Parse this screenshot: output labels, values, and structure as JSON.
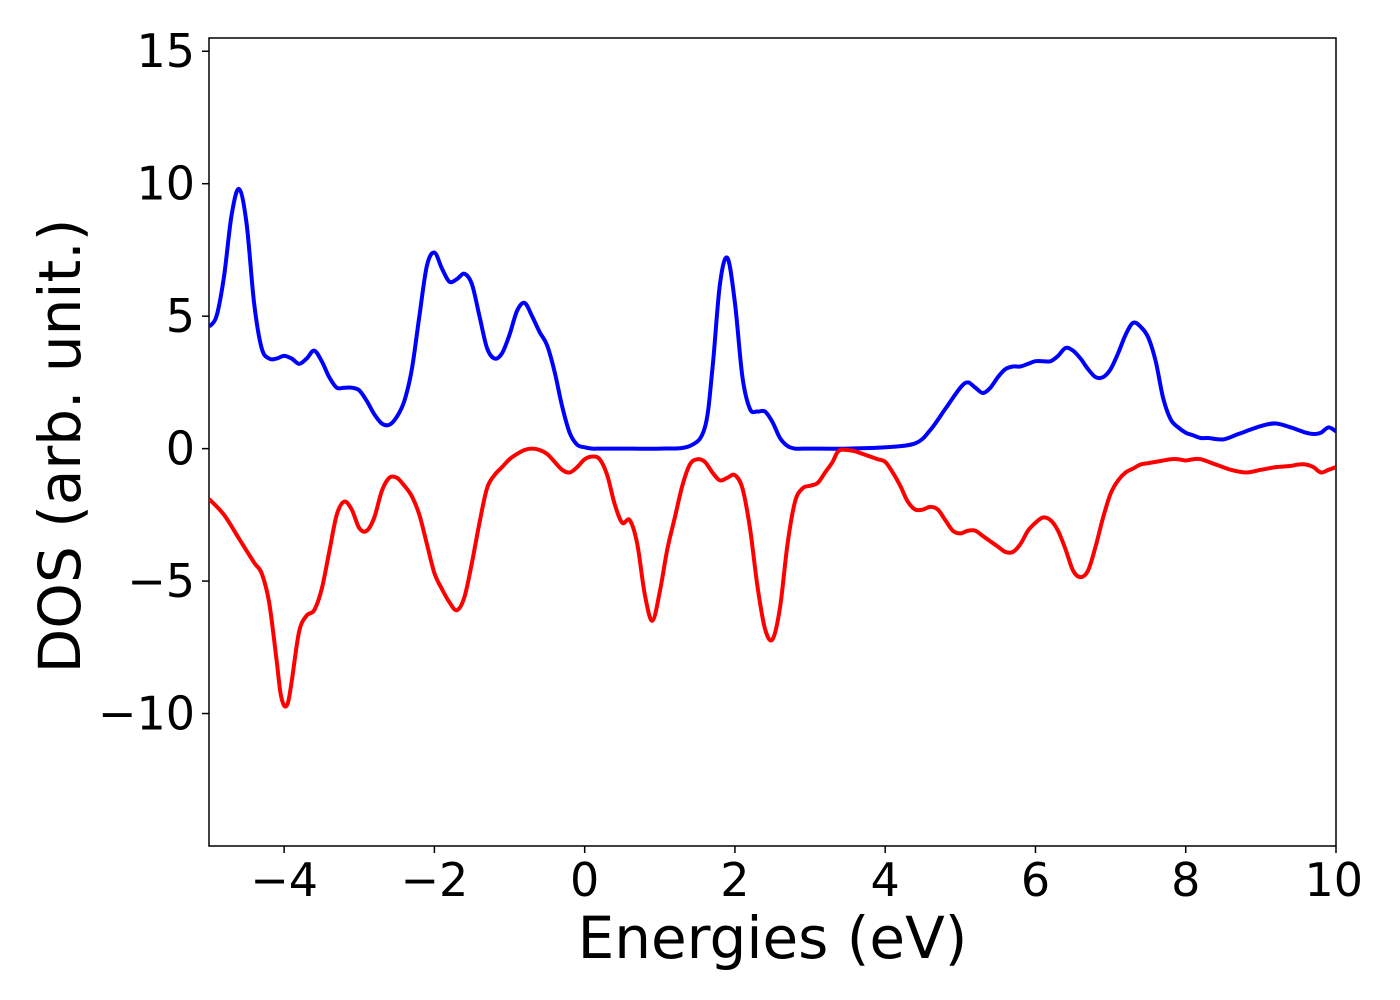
{
  "chart_data": {
    "type": "line",
    "xlabel": "Energies (eV)",
    "ylabel": "DOS (arb. unit.)",
    "xlim": [
      -5,
      10
    ],
    "ylim": [
      -15,
      15.5
    ],
    "xticks": [
      -4,
      -2,
      0,
      2,
      4,
      6,
      8,
      10
    ],
    "yticks": [
      -10,
      -5,
      0,
      5,
      10,
      15
    ],
    "grid": false,
    "legend": "none",
    "series": [
      {
        "color": "#0000ff",
        "x": [
          -5.0,
          -4.9,
          -4.8,
          -4.7,
          -4.6,
          -4.5,
          -4.4,
          -4.3,
          -4.2,
          -4.1,
          -4.0,
          -3.9,
          -3.8,
          -3.7,
          -3.6,
          -3.5,
          -3.4,
          -3.3,
          -3.2,
          -3.1,
          -3.0,
          -2.9,
          -2.8,
          -2.7,
          -2.6,
          -2.5,
          -2.4,
          -2.3,
          -2.2,
          -2.1,
          -2.0,
          -1.9,
          -1.8,
          -1.7,
          -1.6,
          -1.5,
          -1.4,
          -1.3,
          -1.2,
          -1.1,
          -1.0,
          -0.9,
          -0.8,
          -0.7,
          -0.6,
          -0.5,
          -0.4,
          -0.3,
          -0.2,
          -0.1,
          0.0,
          0.1,
          0.2,
          0.3,
          0.6,
          1.0,
          1.4,
          1.6,
          1.7,
          1.8,
          1.9,
          2.0,
          2.1,
          2.2,
          2.3,
          2.4,
          2.5,
          2.6,
          2.7,
          2.8,
          2.9,
          3.0,
          3.5,
          4.0,
          4.4,
          4.6,
          4.8,
          5.0,
          5.1,
          5.2,
          5.3,
          5.4,
          5.5,
          5.6,
          5.7,
          5.8,
          5.9,
          6.0,
          6.1,
          6.2,
          6.3,
          6.4,
          6.5,
          6.6,
          6.7,
          6.8,
          6.9,
          7.0,
          7.1,
          7.2,
          7.3,
          7.4,
          7.5,
          7.6,
          7.7,
          7.8,
          7.9,
          8.0,
          8.1,
          8.2,
          8.3,
          8.5,
          8.7,
          9.0,
          9.2,
          9.4,
          9.5,
          9.6,
          9.7,
          9.8,
          9.9,
          10.0
        ],
        "y": [
          4.6,
          5.0,
          6.5,
          8.8,
          9.8,
          8.5,
          5.5,
          3.8,
          3.4,
          3.4,
          3.5,
          3.4,
          3.2,
          3.4,
          3.7,
          3.3,
          2.7,
          2.3,
          2.3,
          2.3,
          2.2,
          1.8,
          1.3,
          0.95,
          0.9,
          1.2,
          1.8,
          3.0,
          5.0,
          6.9,
          7.4,
          6.8,
          6.3,
          6.4,
          6.6,
          6.2,
          5.0,
          3.8,
          3.4,
          3.6,
          4.3,
          5.2,
          5.5,
          5.0,
          4.4,
          3.9,
          2.9,
          1.6,
          0.6,
          0.15,
          0.05,
          0.0,
          0.0,
          0.0,
          0.0,
          0.0,
          0.1,
          0.8,
          3.0,
          6.2,
          7.2,
          5.5,
          2.7,
          1.5,
          1.4,
          1.4,
          1.0,
          0.4,
          0.1,
          0.0,
          0.0,
          0.0,
          0.0,
          0.05,
          0.2,
          0.7,
          1.5,
          2.3,
          2.5,
          2.3,
          2.1,
          2.3,
          2.7,
          3.0,
          3.1,
          3.1,
          3.2,
          3.3,
          3.3,
          3.3,
          3.5,
          3.8,
          3.7,
          3.4,
          3.0,
          2.7,
          2.7,
          3.0,
          3.6,
          4.3,
          4.75,
          4.6,
          4.2,
          3.3,
          1.9,
          1.1,
          0.8,
          0.6,
          0.5,
          0.4,
          0.4,
          0.35,
          0.55,
          0.85,
          0.95,
          0.8,
          0.7,
          0.6,
          0.55,
          0.6,
          0.8,
          0.65
        ]
      },
      {
        "color": "#ff0000",
        "x": [
          -5.0,
          -4.8,
          -4.6,
          -4.4,
          -4.3,
          -4.2,
          -4.1,
          -4.05,
          -4.0,
          -3.95,
          -3.9,
          -3.8,
          -3.7,
          -3.6,
          -3.5,
          -3.4,
          -3.3,
          -3.2,
          -3.1,
          -3.0,
          -2.9,
          -2.8,
          -2.7,
          -2.6,
          -2.5,
          -2.4,
          -2.3,
          -2.2,
          -2.1,
          -2.0,
          -1.9,
          -1.8,
          -1.7,
          -1.6,
          -1.5,
          -1.4,
          -1.3,
          -1.2,
          -1.1,
          -1.0,
          -0.9,
          -0.8,
          -0.7,
          -0.6,
          -0.5,
          -0.4,
          -0.3,
          -0.2,
          -0.1,
          0.0,
          0.1,
          0.2,
          0.3,
          0.4,
          0.5,
          0.6,
          0.7,
          0.8,
          0.9,
          1.0,
          1.1,
          1.2,
          1.3,
          1.4,
          1.5,
          1.6,
          1.7,
          1.8,
          1.9,
          2.0,
          2.1,
          2.2,
          2.3,
          2.4,
          2.5,
          2.6,
          2.7,
          2.8,
          2.9,
          3.0,
          3.1,
          3.2,
          3.3,
          3.35,
          3.4,
          3.5,
          3.6,
          3.7,
          3.8,
          3.9,
          4.0,
          4.1,
          4.2,
          4.3,
          4.4,
          4.5,
          4.6,
          4.7,
          4.8,
          4.9,
          5.0,
          5.1,
          5.2,
          5.3,
          5.4,
          5.5,
          5.6,
          5.7,
          5.8,
          5.9,
          6.0,
          6.1,
          6.2,
          6.3,
          6.4,
          6.5,
          6.6,
          6.7,
          6.8,
          6.9,
          7.0,
          7.1,
          7.2,
          7.3,
          7.4,
          7.5,
          7.6,
          7.7,
          7.8,
          7.9,
          8.0,
          8.1,
          8.2,
          8.4,
          8.6,
          8.8,
          9.0,
          9.2,
          9.4,
          9.5,
          9.6,
          9.7,
          9.8,
          9.9,
          10.0
        ],
        "y": [
          -1.9,
          -2.5,
          -3.4,
          -4.3,
          -4.7,
          -5.8,
          -8.0,
          -9.2,
          -9.7,
          -9.6,
          -8.8,
          -6.9,
          -6.3,
          -6.1,
          -5.3,
          -3.9,
          -2.5,
          -2.0,
          -2.3,
          -3.0,
          -3.1,
          -2.6,
          -1.6,
          -1.1,
          -1.1,
          -1.4,
          -1.8,
          -2.5,
          -3.6,
          -4.7,
          -5.3,
          -5.8,
          -6.1,
          -5.6,
          -4.3,
          -2.8,
          -1.5,
          -1.0,
          -0.7,
          -0.4,
          -0.2,
          -0.05,
          0.0,
          -0.05,
          -0.2,
          -0.5,
          -0.8,
          -0.9,
          -0.7,
          -0.4,
          -0.3,
          -0.4,
          -1.0,
          -2.1,
          -2.8,
          -2.7,
          -3.6,
          -5.5,
          -6.5,
          -5.4,
          -3.8,
          -2.6,
          -1.4,
          -0.6,
          -0.4,
          -0.5,
          -0.9,
          -1.2,
          -1.1,
          -1.0,
          -1.5,
          -3.0,
          -5.2,
          -6.8,
          -7.2,
          -6.0,
          -3.6,
          -2.0,
          -1.5,
          -1.4,
          -1.3,
          -0.9,
          -0.5,
          -0.2,
          -0.05,
          -0.05,
          -0.1,
          -0.2,
          -0.3,
          -0.4,
          -0.5,
          -0.9,
          -1.4,
          -2.0,
          -2.3,
          -2.3,
          -2.2,
          -2.3,
          -2.7,
          -3.1,
          -3.2,
          -3.1,
          -3.1,
          -3.3,
          -3.5,
          -3.7,
          -3.9,
          -3.9,
          -3.6,
          -3.1,
          -2.8,
          -2.6,
          -2.7,
          -3.1,
          -3.8,
          -4.6,
          -4.85,
          -4.6,
          -3.7,
          -2.6,
          -1.7,
          -1.2,
          -0.9,
          -0.75,
          -0.6,
          -0.55,
          -0.5,
          -0.45,
          -0.4,
          -0.4,
          -0.45,
          -0.4,
          -0.4,
          -0.6,
          -0.8,
          -0.9,
          -0.8,
          -0.7,
          -0.65,
          -0.6,
          -0.6,
          -0.7,
          -0.9,
          -0.8,
          -0.7
        ]
      }
    ]
  }
}
